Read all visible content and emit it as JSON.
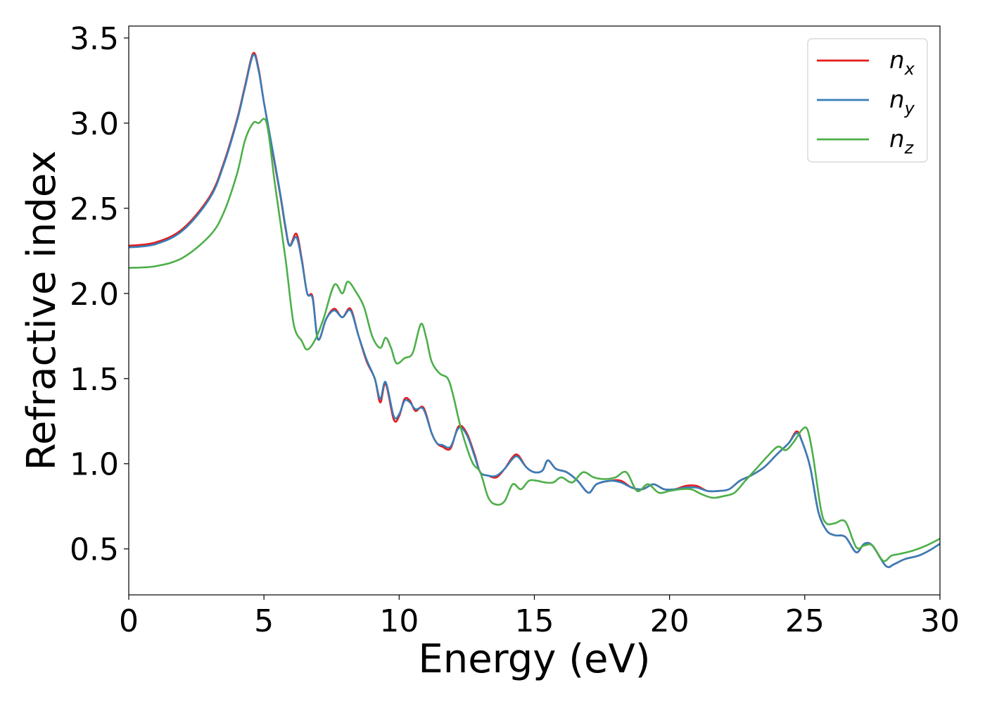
{
  "chart_data": {
    "type": "line",
    "xlabel": "Energy (eV)",
    "ylabel": "Refractive index",
    "xlim": [
      0,
      30
    ],
    "ylim": [
      0.23,
      3.57
    ],
    "xticks": [
      0,
      5,
      10,
      15,
      20,
      25,
      30
    ],
    "xtick_labels": [
      "0",
      "5",
      "10",
      "15",
      "20",
      "25",
      "30"
    ],
    "yticks": [
      0.5,
      1.0,
      1.5,
      2.0,
      2.5,
      3.0,
      3.5
    ],
    "ytick_labels": [
      "0.5",
      "1.0",
      "1.5",
      "2.0",
      "2.5",
      "3.0",
      "3.5"
    ],
    "grid": false,
    "legend_position": "top-right",
    "series": [
      {
        "name": "n_x",
        "label_main": "n",
        "label_sub": "x",
        "color": "#e41a1c",
        "points": [
          [
            0,
            2.28
          ],
          [
            1,
            2.3
          ],
          [
            2,
            2.38
          ],
          [
            3,
            2.57
          ],
          [
            3.5,
            2.76
          ],
          [
            4,
            3.02
          ],
          [
            4.3,
            3.22
          ],
          [
            4.6,
            3.41
          ],
          [
            4.8,
            3.32
          ],
          [
            5.0,
            3.12
          ],
          [
            5.3,
            2.85
          ],
          [
            5.6,
            2.58
          ],
          [
            5.8,
            2.38
          ],
          [
            5.95,
            2.28
          ],
          [
            6.2,
            2.35
          ],
          [
            6.4,
            2.2
          ],
          [
            6.6,
            2.0
          ],
          [
            6.8,
            1.98
          ],
          [
            7.0,
            1.73
          ],
          [
            7.3,
            1.85
          ],
          [
            7.6,
            1.91
          ],
          [
            7.9,
            1.86
          ],
          [
            8.2,
            1.91
          ],
          [
            8.5,
            1.75
          ],
          [
            8.8,
            1.6
          ],
          [
            9.1,
            1.5
          ],
          [
            9.3,
            1.36
          ],
          [
            9.5,
            1.47
          ],
          [
            9.8,
            1.26
          ],
          [
            10.0,
            1.28
          ],
          [
            10.2,
            1.38
          ],
          [
            10.4,
            1.37
          ],
          [
            10.6,
            1.31
          ],
          [
            10.9,
            1.33
          ],
          [
            11.2,
            1.18
          ],
          [
            11.4,
            1.12
          ],
          [
            11.6,
            1.1
          ],
          [
            11.9,
            1.09
          ],
          [
            12.2,
            1.22
          ],
          [
            12.5,
            1.18
          ],
          [
            12.8,
            1.05
          ],
          [
            13.0,
            0.95
          ],
          [
            13.3,
            0.93
          ],
          [
            13.6,
            0.92
          ],
          [
            13.9,
            0.97
          ],
          [
            14.2,
            1.04
          ],
          [
            14.4,
            1.05
          ],
          [
            14.7,
            0.98
          ],
          [
            15.0,
            0.95
          ],
          [
            15.3,
            0.96
          ],
          [
            15.5,
            1.02
          ],
          [
            15.8,
            0.97
          ],
          [
            16.2,
            0.95
          ],
          [
            16.6,
            0.9
          ],
          [
            17.0,
            0.83
          ],
          [
            17.3,
            0.88
          ],
          [
            17.8,
            0.9
          ],
          [
            18.2,
            0.9
          ],
          [
            18.6,
            0.86
          ],
          [
            19.0,
            0.85
          ],
          [
            19.4,
            0.88
          ],
          [
            19.8,
            0.85
          ],
          [
            20.2,
            0.85
          ],
          [
            20.6,
            0.87
          ],
          [
            21.0,
            0.87
          ],
          [
            21.4,
            0.84
          ],
          [
            21.8,
            0.84
          ],
          [
            22.2,
            0.85
          ],
          [
            22.6,
            0.9
          ],
          [
            23.0,
            0.93
          ],
          [
            23.5,
            0.98
          ],
          [
            24.0,
            1.06
          ],
          [
            24.4,
            1.12
          ],
          [
            24.7,
            1.19
          ],
          [
            24.9,
            1.13
          ],
          [
            25.2,
            0.98
          ],
          [
            25.5,
            0.72
          ],
          [
            25.8,
            0.61
          ],
          [
            26.1,
            0.58
          ],
          [
            26.5,
            0.57
          ],
          [
            26.9,
            0.48
          ],
          [
            27.2,
            0.53
          ],
          [
            27.5,
            0.52
          ],
          [
            28.0,
            0.4
          ],
          [
            28.3,
            0.41
          ],
          [
            28.7,
            0.44
          ],
          [
            29.2,
            0.46
          ],
          [
            29.6,
            0.49
          ],
          [
            30,
            0.53
          ]
        ]
      },
      {
        "name": "n_y",
        "label_main": "n",
        "label_sub": "y",
        "color": "#377eb8",
        "points": [
          [
            0,
            2.27
          ],
          [
            1,
            2.29
          ],
          [
            2,
            2.37
          ],
          [
            3,
            2.56
          ],
          [
            3.5,
            2.75
          ],
          [
            4,
            3.01
          ],
          [
            4.3,
            3.21
          ],
          [
            4.6,
            3.4
          ],
          [
            4.8,
            3.31
          ],
          [
            5.0,
            3.12
          ],
          [
            5.3,
            2.86
          ],
          [
            5.6,
            2.59
          ],
          [
            5.8,
            2.39
          ],
          [
            5.95,
            2.28
          ],
          [
            6.2,
            2.33
          ],
          [
            6.4,
            2.19
          ],
          [
            6.6,
            2.0
          ],
          [
            6.8,
            1.97
          ],
          [
            7.0,
            1.73
          ],
          [
            7.3,
            1.85
          ],
          [
            7.6,
            1.9
          ],
          [
            7.9,
            1.86
          ],
          [
            8.2,
            1.9
          ],
          [
            8.5,
            1.75
          ],
          [
            8.8,
            1.61
          ],
          [
            9.1,
            1.5
          ],
          [
            9.3,
            1.38
          ],
          [
            9.5,
            1.48
          ],
          [
            9.8,
            1.28
          ],
          [
            10.0,
            1.29
          ],
          [
            10.2,
            1.37
          ],
          [
            10.4,
            1.36
          ],
          [
            10.6,
            1.32
          ],
          [
            10.9,
            1.32
          ],
          [
            11.2,
            1.18
          ],
          [
            11.4,
            1.12
          ],
          [
            11.6,
            1.11
          ],
          [
            11.9,
            1.1
          ],
          [
            12.2,
            1.21
          ],
          [
            12.5,
            1.17
          ],
          [
            12.8,
            1.04
          ],
          [
            13.0,
            0.95
          ],
          [
            13.3,
            0.93
          ],
          [
            13.6,
            0.93
          ],
          [
            13.9,
            0.97
          ],
          [
            14.2,
            1.03
          ],
          [
            14.4,
            1.04
          ],
          [
            14.7,
            0.98
          ],
          [
            15.0,
            0.95
          ],
          [
            15.3,
            0.96
          ],
          [
            15.5,
            1.02
          ],
          [
            15.8,
            0.97
          ],
          [
            16.2,
            0.95
          ],
          [
            16.6,
            0.9
          ],
          [
            17.0,
            0.83
          ],
          [
            17.3,
            0.88
          ],
          [
            17.8,
            0.9
          ],
          [
            18.2,
            0.89
          ],
          [
            18.6,
            0.86
          ],
          [
            19.0,
            0.85
          ],
          [
            19.4,
            0.88
          ],
          [
            19.8,
            0.85
          ],
          [
            20.2,
            0.85
          ],
          [
            20.6,
            0.86
          ],
          [
            21.0,
            0.86
          ],
          [
            21.4,
            0.84
          ],
          [
            21.8,
            0.84
          ],
          [
            22.2,
            0.85
          ],
          [
            22.6,
            0.9
          ],
          [
            23.0,
            0.93
          ],
          [
            23.5,
            0.98
          ],
          [
            24.0,
            1.06
          ],
          [
            24.4,
            1.12
          ],
          [
            24.7,
            1.18
          ],
          [
            24.9,
            1.13
          ],
          [
            25.2,
            0.98
          ],
          [
            25.5,
            0.72
          ],
          [
            25.8,
            0.61
          ],
          [
            26.1,
            0.58
          ],
          [
            26.5,
            0.57
          ],
          [
            26.9,
            0.48
          ],
          [
            27.2,
            0.53
          ],
          [
            27.5,
            0.52
          ],
          [
            28.0,
            0.4
          ],
          [
            28.3,
            0.41
          ],
          [
            28.7,
            0.44
          ],
          [
            29.2,
            0.46
          ],
          [
            29.6,
            0.49
          ],
          [
            30,
            0.53
          ]
        ]
      },
      {
        "name": "n_z",
        "label_main": "n",
        "label_sub": "z",
        "color": "#4daf4a",
        "points": [
          [
            0,
            2.15
          ],
          [
            1,
            2.16
          ],
          [
            2,
            2.21
          ],
          [
            3,
            2.34
          ],
          [
            3.5,
            2.47
          ],
          [
            4,
            2.7
          ],
          [
            4.3,
            2.9
          ],
          [
            4.6,
            3.0
          ],
          [
            4.8,
            3.0
          ],
          [
            5.1,
            3.0
          ],
          [
            5.4,
            2.65
          ],
          [
            5.8,
            2.2
          ],
          [
            6.1,
            1.82
          ],
          [
            6.4,
            1.72
          ],
          [
            6.6,
            1.67
          ],
          [
            6.9,
            1.73
          ],
          [
            7.2,
            1.85
          ],
          [
            7.6,
            2.05
          ],
          [
            7.9,
            2.0
          ],
          [
            8.1,
            2.07
          ],
          [
            8.4,
            2.01
          ],
          [
            8.7,
            1.92
          ],
          [
            9.0,
            1.75
          ],
          [
            9.3,
            1.68
          ],
          [
            9.5,
            1.74
          ],
          [
            9.7,
            1.68
          ],
          [
            9.9,
            1.59
          ],
          [
            10.2,
            1.62
          ],
          [
            10.5,
            1.65
          ],
          [
            10.8,
            1.82
          ],
          [
            11.0,
            1.74
          ],
          [
            11.2,
            1.6
          ],
          [
            11.5,
            1.53
          ],
          [
            11.8,
            1.5
          ],
          [
            12.0,
            1.4
          ],
          [
            12.3,
            1.2
          ],
          [
            12.7,
            1.01
          ],
          [
            13.0,
            0.95
          ],
          [
            13.3,
            0.8
          ],
          [
            13.6,
            0.76
          ],
          [
            13.9,
            0.78
          ],
          [
            14.2,
            0.88
          ],
          [
            14.5,
            0.85
          ],
          [
            14.8,
            0.9
          ],
          [
            15.1,
            0.9
          ],
          [
            15.4,
            0.89
          ],
          [
            15.7,
            0.89
          ],
          [
            16.0,
            0.92
          ],
          [
            16.4,
            0.89
          ],
          [
            16.8,
            0.95
          ],
          [
            17.2,
            0.92
          ],
          [
            17.6,
            0.91
          ],
          [
            18.0,
            0.92
          ],
          [
            18.4,
            0.95
          ],
          [
            18.8,
            0.84
          ],
          [
            19.2,
            0.88
          ],
          [
            19.6,
            0.83
          ],
          [
            20.0,
            0.84
          ],
          [
            20.4,
            0.85
          ],
          [
            20.8,
            0.85
          ],
          [
            21.2,
            0.82
          ],
          [
            21.6,
            0.8
          ],
          [
            22.0,
            0.81
          ],
          [
            22.4,
            0.83
          ],
          [
            22.8,
            0.9
          ],
          [
            23.2,
            0.97
          ],
          [
            23.6,
            1.04
          ],
          [
            24.0,
            1.1
          ],
          [
            24.3,
            1.08
          ],
          [
            24.6,
            1.13
          ],
          [
            24.9,
            1.2
          ],
          [
            25.1,
            1.2
          ],
          [
            25.3,
            1.05
          ],
          [
            25.6,
            0.73
          ],
          [
            25.8,
            0.65
          ],
          [
            26.1,
            0.65
          ],
          [
            26.5,
            0.66
          ],
          [
            26.9,
            0.51
          ],
          [
            27.2,
            0.52
          ],
          [
            27.5,
            0.52
          ],
          [
            27.9,
            0.43
          ],
          [
            28.2,
            0.46
          ],
          [
            28.5,
            0.47
          ],
          [
            29.0,
            0.49
          ],
          [
            29.5,
            0.52
          ],
          [
            30,
            0.56
          ]
        ]
      }
    ]
  }
}
